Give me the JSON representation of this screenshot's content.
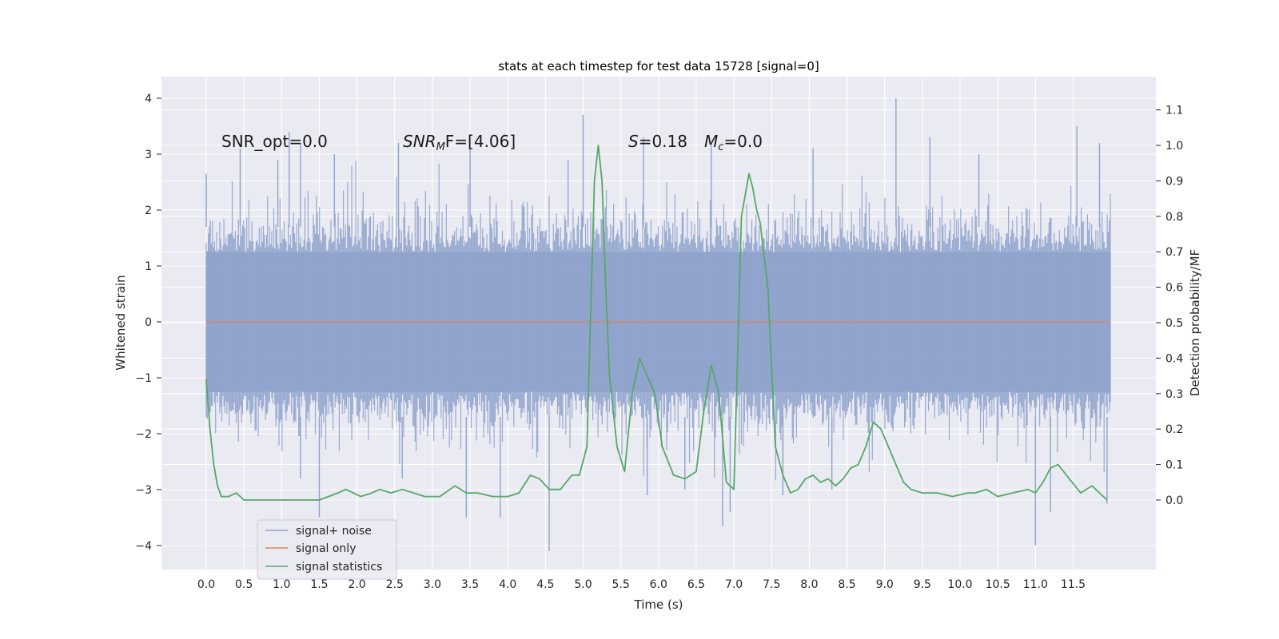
{
  "chart_data": {
    "type": "line",
    "title": "stats at each timestep for test data 15728 [signal=0]",
    "xlabel": "Time (s)",
    "ylabel_left": "Whitened strain",
    "ylabel_right": "Detection probability/MF",
    "xlim": [
      -0.5,
      12.5
    ],
    "ylim_left": [
      -4.4,
      4.4
    ],
    "ylim_right": [
      -0.13,
      1.2
    ],
    "xticks": [
      "0.0",
      "0.5",
      "1.0",
      "1.5",
      "2.0",
      "2.5",
      "3.0",
      "3.5",
      "4.0",
      "4.5",
      "5.0",
      "5.5",
      "6.0",
      "6.5",
      "7.0",
      "7.5",
      "8.0",
      "8.5",
      "9.0",
      "9.5",
      "10.0",
      "10.5",
      "11.0",
      "11.5"
    ],
    "yticks_left": [
      "4",
      "3",
      "2",
      "1",
      "0",
      "−1",
      "−2",
      "−3",
      "−4"
    ],
    "yticks_right": [
      "1.1",
      "1.0",
      "0.9",
      "0.8",
      "0.7",
      "0.6",
      "0.5",
      "0.4",
      "0.3",
      "0.2",
      "0.1",
      "0.0"
    ],
    "grid": true,
    "annotations": {
      "snr_opt": "SNR_opt=0.0",
      "snr_mf_base": "SNR",
      "snr_mf_sub": "M",
      "snr_mf_rest": "F=[4.06]",
      "s_sym": "S",
      "s_val": "=0.18",
      "mc_sym": "M",
      "mc_sub": "c",
      "mc_val": "=0.0"
    },
    "legend": {
      "placement": "lower-left",
      "entries": [
        "signal+ noise",
        "signal only",
        "signal statistics"
      ]
    },
    "series": [
      {
        "name": "signal+ noise",
        "axis": "left",
        "color": "#8fa3cc",
        "x_range": [
          0.0,
          12.0
        ],
        "envelope_typical": [
          -1.8,
          1.9
        ],
        "spikes": [
          {
            "x": 0.0,
            "y": 2.65
          },
          {
            "x": 0.45,
            "y": 3.1
          },
          {
            "x": 0.95,
            "y": 2.9
          },
          {
            "x": 1.1,
            "y": 3.4
          },
          {
            "x": 1.25,
            "y": 3.2
          },
          {
            "x": 1.7,
            "y": 3.0
          },
          {
            "x": 2.55,
            "y": 3.2
          },
          {
            "x": 3.5,
            "y": 3.1
          },
          {
            "x": 4.8,
            "y": 2.9
          },
          {
            "x": 5.0,
            "y": 3.7
          },
          {
            "x": 5.8,
            "y": 3.3
          },
          {
            "x": 6.7,
            "y": 3.2
          },
          {
            "x": 8.05,
            "y": 3.1
          },
          {
            "x": 9.15,
            "y": 4.0
          },
          {
            "x": 9.6,
            "y": 3.3
          },
          {
            "x": 10.25,
            "y": 3.0
          },
          {
            "x": 11.55,
            "y": 3.5
          },
          {
            "x": 11.85,
            "y": 3.2
          },
          {
            "x": 1.5,
            "y": -3.5
          },
          {
            "x": 3.45,
            "y": -3.5
          },
          {
            "x": 3.9,
            "y": -3.5
          },
          {
            "x": 4.55,
            "y": -4.1
          },
          {
            "x": 5.85,
            "y": -3.1
          },
          {
            "x": 6.85,
            "y": -3.65
          },
          {
            "x": 6.95,
            "y": -3.4
          },
          {
            "x": 7.65,
            "y": -3.1
          },
          {
            "x": 11.0,
            "y": -4.0
          },
          {
            "x": 11.2,
            "y": -3.4
          },
          {
            "x": 11.95,
            "y": -3.25
          },
          {
            "x": 1.25,
            "y": -2.8
          },
          {
            "x": 2.6,
            "y": -2.8
          },
          {
            "x": 6.35,
            "y": -3.0
          },
          {
            "x": 8.3,
            "y": -3.0
          }
        ]
      },
      {
        "name": "signal only",
        "axis": "left",
        "color": "#dd8452",
        "x": [
          0.0,
          12.0
        ],
        "y": [
          0.0,
          0.0
        ]
      },
      {
        "name": "signal statistics",
        "axis": "right",
        "color": "#55a868",
        "x": [
          0.0,
          0.05,
          0.1,
          0.15,
          0.2,
          0.25,
          0.3,
          0.4,
          0.5,
          0.75,
          1.0,
          1.25,
          1.5,
          1.75,
          1.85,
          1.95,
          2.05,
          2.2,
          2.3,
          2.45,
          2.6,
          2.75,
          2.9,
          3.1,
          3.3,
          3.45,
          3.6,
          3.8,
          4.0,
          4.15,
          4.3,
          4.42,
          4.55,
          4.7,
          4.85,
          4.95,
          5.05,
          5.15,
          5.2,
          5.25,
          5.3,
          5.35,
          5.45,
          5.55,
          5.65,
          5.75,
          5.85,
          5.95,
          6.05,
          6.2,
          6.35,
          6.5,
          6.6,
          6.7,
          6.8,
          6.9,
          7.0,
          7.1,
          7.2,
          7.25,
          7.3,
          7.35,
          7.45,
          7.55,
          7.65,
          7.75,
          7.85,
          7.95,
          8.05,
          8.15,
          8.25,
          8.35,
          8.45,
          8.55,
          8.65,
          8.75,
          8.85,
          8.95,
          9.05,
          9.15,
          9.25,
          9.35,
          9.5,
          9.7,
          9.9,
          10.1,
          10.2,
          10.35,
          10.5,
          10.7,
          10.9,
          11.0,
          11.1,
          11.2,
          11.3,
          11.45,
          11.6,
          11.75,
          11.95
        ],
        "y": [
          0.34,
          0.2,
          0.1,
          0.04,
          0.01,
          0.01,
          0.01,
          0.02,
          0.0,
          0.0,
          0.0,
          0.0,
          0.0,
          0.02,
          0.03,
          0.02,
          0.01,
          0.02,
          0.03,
          0.02,
          0.03,
          0.02,
          0.01,
          0.01,
          0.04,
          0.02,
          0.02,
          0.01,
          0.01,
          0.02,
          0.07,
          0.06,
          0.03,
          0.03,
          0.07,
          0.07,
          0.15,
          0.9,
          1.0,
          0.9,
          0.6,
          0.35,
          0.15,
          0.08,
          0.3,
          0.4,
          0.35,
          0.3,
          0.15,
          0.07,
          0.06,
          0.08,
          0.25,
          0.38,
          0.3,
          0.05,
          0.03,
          0.8,
          0.92,
          0.88,
          0.82,
          0.78,
          0.6,
          0.15,
          0.07,
          0.02,
          0.03,
          0.06,
          0.07,
          0.05,
          0.06,
          0.04,
          0.06,
          0.09,
          0.1,
          0.15,
          0.22,
          0.2,
          0.15,
          0.1,
          0.05,
          0.03,
          0.02,
          0.02,
          0.01,
          0.02,
          0.02,
          0.03,
          0.01,
          0.02,
          0.03,
          0.02,
          0.05,
          0.09,
          0.1,
          0.06,
          0.02,
          0.04,
          0.0
        ]
      }
    ]
  }
}
